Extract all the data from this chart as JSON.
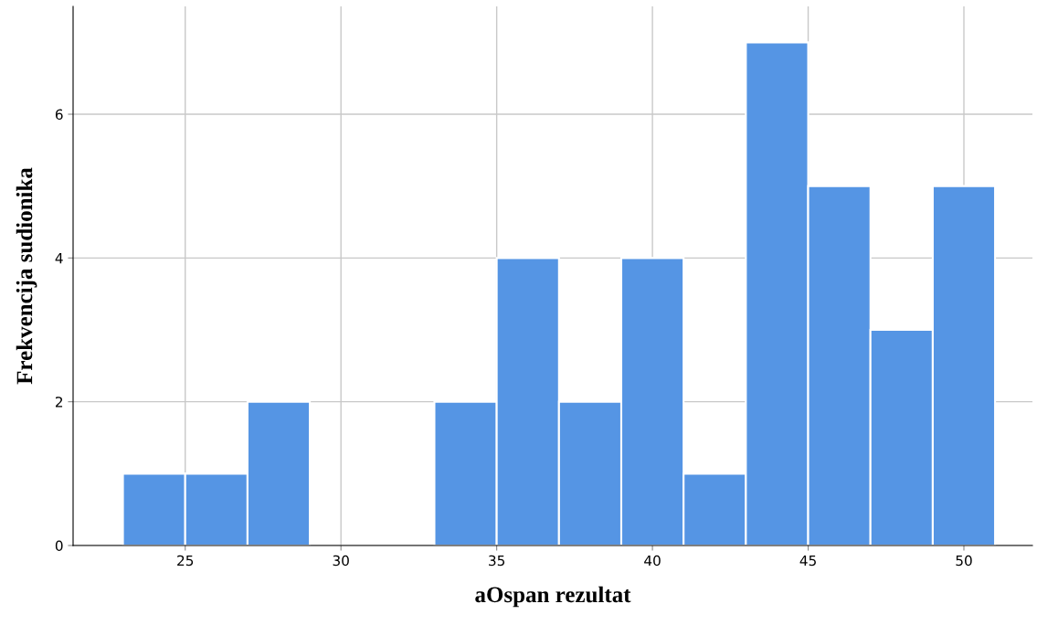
{
  "chart_data": {
    "type": "histogram",
    "xlabel": "aOspan rezultat",
    "ylabel": "Frekvencija sudionika",
    "bins": [
      23,
      25,
      27,
      29,
      31,
      33,
      35,
      37,
      39,
      41,
      43,
      45,
      47,
      49,
      51
    ],
    "values": [
      1,
      1,
      2,
      0,
      0,
      2,
      4,
      2,
      4,
      1,
      7,
      5,
      3,
      5
    ],
    "color": "#5595e4",
    "xlim": [
      21.4,
      52.2
    ],
    "xticks": [
      25,
      30,
      35,
      40,
      45,
      50
    ],
    "ylim": [
      0,
      7.5
    ],
    "yticks": [
      0,
      2,
      4,
      6
    ],
    "grid": true
  }
}
